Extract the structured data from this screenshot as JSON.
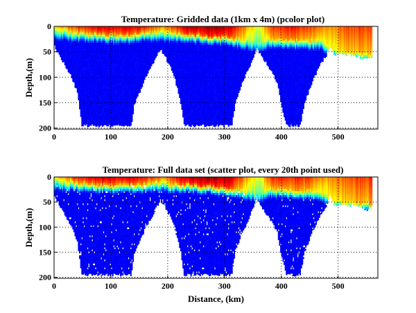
{
  "chart_data": [
    {
      "type": "heatmap",
      "title": "Temperature: Gridded data (1km x 4m) (pcolor plot)",
      "xlabel": "",
      "ylabel": "Depth,(m)",
      "xlim": [
        0,
        570
      ],
      "ylim": [
        0,
        202
      ],
      "y_reversed": true,
      "xticks": [
        0,
        100,
        200,
        300,
        400,
        500
      ],
      "yticks": [
        0,
        50,
        100,
        150,
        200
      ],
      "grid": true,
      "colormap": "jet",
      "cell_size": {
        "km": 1,
        "m": 4
      }
    },
    {
      "type": "scatter",
      "title": "Temperature: Full data set (scatter plot, every 20th point used)",
      "xlabel": "Distance, (km)",
      "ylabel": "Depth,(m)",
      "xlim": [
        0,
        570
      ],
      "ylim": [
        0,
        202
      ],
      "y_reversed": true,
      "xticks": [
        0,
        100,
        200,
        300,
        400,
        500
      ],
      "yticks": [
        0,
        50,
        100,
        150,
        200
      ],
      "grid": true,
      "colormap": "jet",
      "sampling": "every 20th point"
    }
  ],
  "section": {
    "bottom_depth_m": [
      [
        0,
        40
      ],
      [
        15,
        70
      ],
      [
        30,
        100
      ],
      [
        40,
        130
      ],
      [
        48,
        195
      ],
      [
        135,
        195
      ],
      [
        140,
        155
      ],
      [
        160,
        100
      ],
      [
        175,
        70
      ],
      [
        186,
        45
      ],
      [
        195,
        60
      ],
      [
        210,
        95
      ],
      [
        222,
        150
      ],
      [
        228,
        195
      ],
      [
        312,
        195
      ],
      [
        318,
        150
      ],
      [
        330,
        110
      ],
      [
        345,
        75
      ],
      [
        356,
        42
      ],
      [
        365,
        60
      ],
      [
        380,
        85
      ],
      [
        392,
        110
      ],
      [
        398,
        150
      ],
      [
        408,
        195
      ],
      [
        432,
        195
      ],
      [
        440,
        150
      ],
      [
        455,
        105
      ],
      [
        470,
        70
      ],
      [
        478,
        58
      ],
      [
        484,
        35
      ],
      [
        492,
        55
      ],
      [
        510,
        55
      ],
      [
        530,
        58
      ],
      [
        550,
        65
      ],
      [
        558,
        60
      ],
      [
        560,
        50
      ]
    ],
    "surface_value": [
      [
        0,
        0.62
      ],
      [
        40,
        0.82
      ],
      [
        80,
        0.9
      ],
      [
        150,
        0.88
      ],
      [
        190,
        0.72
      ],
      [
        230,
        0.92
      ],
      [
        270,
        0.97
      ],
      [
        310,
        0.92
      ],
      [
        340,
        0.7
      ],
      [
        360,
        0.58
      ],
      [
        380,
        0.82
      ],
      [
        430,
        0.85
      ],
      [
        480,
        0.72
      ],
      [
        520,
        0.8
      ],
      [
        560,
        0.82
      ]
    ],
    "mixed_layer_depth_m": [
      [
        0,
        5
      ],
      [
        100,
        12
      ],
      [
        190,
        8
      ],
      [
        300,
        15
      ],
      [
        360,
        30
      ],
      [
        380,
        20
      ],
      [
        470,
        25
      ],
      [
        490,
        45
      ],
      [
        560,
        50
      ]
    ],
    "deep_value": 0.12
  }
}
